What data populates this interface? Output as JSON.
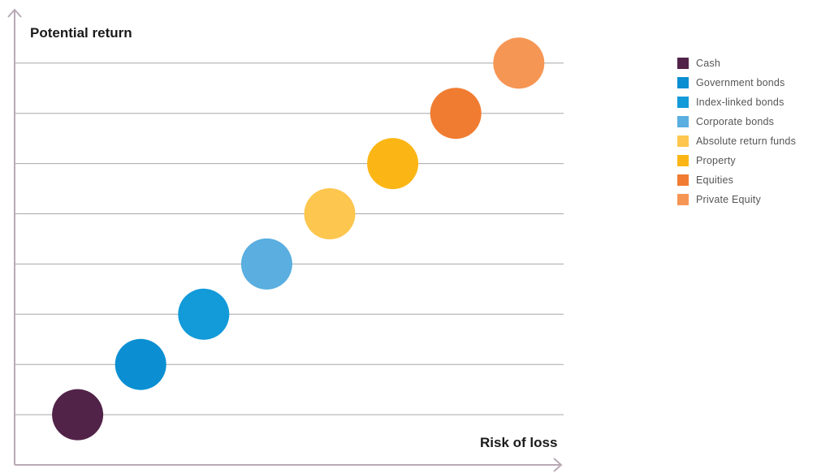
{
  "chart_data": {
    "type": "scatter",
    "ylabel": "Potential return",
    "xlabel": "Risk of loss",
    "axis_ticks_labeled": false,
    "grid": "horizontal",
    "legend_position": "right",
    "x": [
      1,
      2,
      3,
      4,
      5,
      6,
      7,
      8
    ],
    "y": [
      1,
      2,
      3,
      4,
      5,
      6,
      7,
      8
    ],
    "xlim": [
      0,
      8.6
    ],
    "ylim": [
      0,
      8.5
    ],
    "series": [
      {
        "name": "Cash",
        "x": 1,
        "y": 1,
        "color": "#522349"
      },
      {
        "name": "Government bonds",
        "x": 2,
        "y": 2,
        "color": "#0b8fd2"
      },
      {
        "name": "Index-linked bonds",
        "x": 3,
        "y": 3,
        "color": "#129ad9"
      },
      {
        "name": "Corporate bonds",
        "x": 4,
        "y": 4,
        "color": "#5aaee0"
      },
      {
        "name": "Absolute return funds",
        "x": 5,
        "y": 5,
        "color": "#fdc64e"
      },
      {
        "name": "Property",
        "x": 6,
        "y": 6,
        "color": "#fbb616"
      },
      {
        "name": "Equities",
        "x": 7,
        "y": 7,
        "color": "#f07c31"
      },
      {
        "name": "Private Equity",
        "x": 8,
        "y": 8,
        "color": "#f69655"
      }
    ]
  },
  "colors": {
    "axis": "#b9aab6",
    "gridline": "#a7a7a7"
  }
}
